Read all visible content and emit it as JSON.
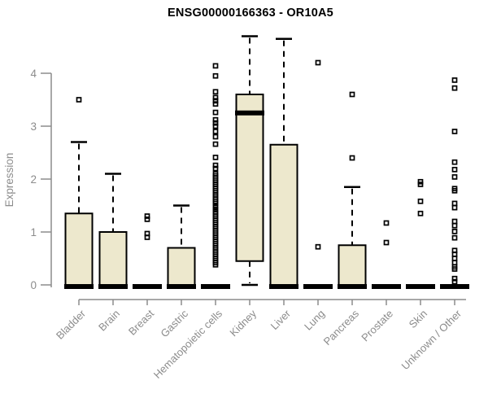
{
  "chart_data": {
    "type": "boxplot",
    "title": "ENSG00000166363 - OR10A5",
    "ylabel": "Expression",
    "xlabel": "",
    "ylim": [
      0,
      4.75
    ],
    "yticks": [
      0,
      1,
      2,
      3,
      4
    ],
    "grid": false,
    "legend": "none",
    "colors": {
      "box_fill": "#EDE8CD",
      "box_stroke": "#000000",
      "axis": "#8C8C8C",
      "title": "#000000",
      "background": "#FFFFFF"
    },
    "categories": [
      "Bladder",
      "Brain",
      "Breast",
      "Gastric",
      "Hematopoietic cells",
      "Kidney",
      "Liver",
      "Lung",
      "Pancreas",
      "Prostate",
      "Skin",
      "Unknown / Other"
    ],
    "series": [
      {
        "name": "Bladder",
        "q1": 0,
        "median": 0,
        "q3": 1.35,
        "whisker_low": 0,
        "whisker_high": 2.7,
        "outliers": [
          3.5
        ]
      },
      {
        "name": "Brain",
        "q1": 0,
        "median": 0,
        "q3": 1.0,
        "whisker_low": 0,
        "whisker_high": 2.1,
        "outliers": []
      },
      {
        "name": "Breast",
        "q1": 0,
        "median": 0,
        "q3": 0,
        "whisker_low": 0,
        "whisker_high": 0,
        "outliers": [
          1.3,
          1.24,
          0.97,
          0.9
        ]
      },
      {
        "name": "Gastric",
        "q1": 0,
        "median": 0,
        "q3": 0.7,
        "whisker_low": 0,
        "whisker_high": 1.5,
        "outliers": []
      },
      {
        "name": "Hematopoietic cells",
        "q1": 0,
        "median": 0,
        "q3": 0,
        "whisker_low": 0,
        "whisker_high": 0,
        "outliers": [
          4.14,
          3.95,
          3.65,
          3.54,
          3.48,
          3.42,
          3.26,
          3.12,
          3.06,
          3.0,
          2.9,
          2.8,
          2.66,
          2.41,
          2.26,
          2.2,
          2.1,
          2.06,
          2.02,
          1.98,
          1.94,
          1.9,
          1.86,
          1.82,
          1.78,
          1.74,
          1.7,
          1.66,
          1.62,
          1.58,
          1.54,
          1.48,
          1.43,
          1.38,
          1.34,
          1.3,
          1.26,
          1.22,
          1.18,
          1.14,
          1.1,
          1.06,
          1.02,
          0.98,
          0.94,
          0.9,
          0.86,
          0.82,
          0.78,
          0.74,
          0.7,
          0.66,
          0.62,
          0.58,
          0.54,
          0.5,
          0.46,
          0.42,
          0.38
        ]
      },
      {
        "name": "Kidney",
        "q1": 0.45,
        "median": 3.25,
        "q3": 3.6,
        "whisker_low": 0,
        "whisker_high": 4.7,
        "outliers": []
      },
      {
        "name": "Liver",
        "q1": 0,
        "median": 0,
        "q3": 2.65,
        "whisker_low": 0,
        "whisker_high": 4.65,
        "outliers": []
      },
      {
        "name": "Lung",
        "q1": 0,
        "median": 0,
        "q3": 0,
        "whisker_low": 0,
        "whisker_high": 0,
        "outliers": [
          4.2,
          0.72
        ]
      },
      {
        "name": "Pancreas",
        "q1": 0,
        "median": 0,
        "q3": 0.75,
        "whisker_low": 0,
        "whisker_high": 1.85,
        "outliers": [
          3.6,
          2.4
        ]
      },
      {
        "name": "Prostate",
        "q1": 0,
        "median": 0,
        "q3": 0,
        "whisker_low": 0,
        "whisker_high": 0,
        "outliers": [
          1.17,
          0.8
        ]
      },
      {
        "name": "Skin",
        "q1": 0,
        "median": 0,
        "q3": 0,
        "whisker_low": 0,
        "whisker_high": 0,
        "outliers": [
          1.95,
          1.9,
          1.58,
          1.35
        ]
      },
      {
        "name": "Unknown / Other",
        "q1": 0,
        "median": 0,
        "q3": 0,
        "whisker_low": 0,
        "whisker_high": 0,
        "outliers": [
          3.87,
          3.72,
          2.9,
          2.32,
          2.18,
          2.04,
          1.82,
          1.78,
          1.54,
          1.46,
          1.2,
          1.12,
          1.01,
          0.89,
          0.65,
          0.58,
          0.5,
          0.42,
          0.34,
          0.3,
          0.12,
          0.06
        ]
      }
    ]
  }
}
